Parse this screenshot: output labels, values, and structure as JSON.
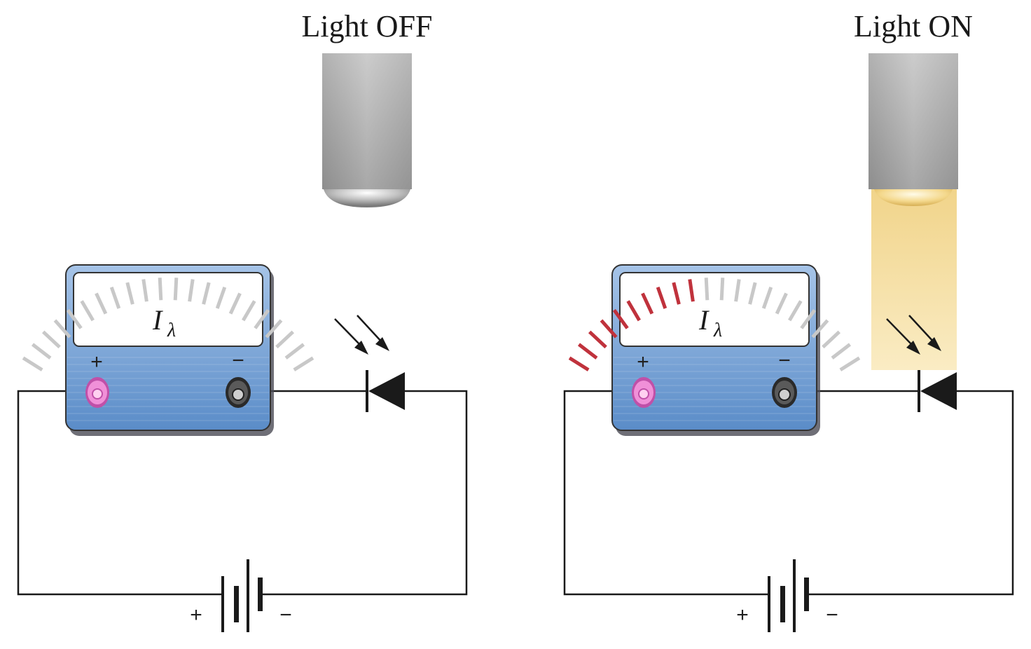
{
  "panels": [
    {
      "caption": "Light OFF",
      "light_on": false,
      "meter": {
        "symbol": "I",
        "subscript": "λ",
        "plus_label": "+",
        "minus_label": "−",
        "reading_fraction": 0.0
      },
      "battery": {
        "plus_label": "+",
        "minus_label": "−"
      }
    },
    {
      "caption": "Light ON",
      "light_on": true,
      "meter": {
        "symbol": "I",
        "subscript": "λ",
        "plus_label": "+",
        "minus_label": "−",
        "reading_fraction": 0.45
      },
      "battery": {
        "plus_label": "+",
        "minus_label": "−"
      }
    }
  ],
  "colors": {
    "meter_body": "#6f9fd6",
    "meter_face": "#ffffff",
    "scale_inactive": "#c8c8c8",
    "scale_active": "#c0323c",
    "terminal_positive": "#e070c8",
    "terminal_negative": "#4a4a4a",
    "light_beam": "#f5dc9a",
    "wire": "#1a1a1a"
  }
}
